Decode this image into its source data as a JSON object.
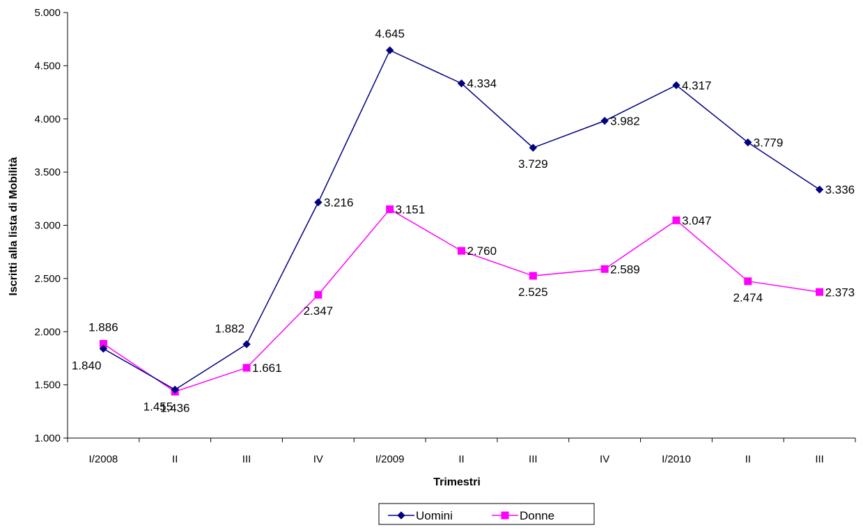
{
  "chart_data": {
    "type": "line",
    "xlabel": "Trimestri",
    "ylabel": "Iscritti alla lista di Mobilità",
    "ylim": [
      1000,
      5000
    ],
    "ytick_step": 500,
    "ytick_labels": [
      "1.000",
      "1.500",
      "2.000",
      "2.500",
      "3.000",
      "3.500",
      "4.000",
      "4.500",
      "5.000"
    ],
    "categories": [
      "I/2008",
      "II",
      "III",
      "IV",
      "I/2009",
      "II",
      "III",
      "IV",
      "I/2010",
      "II",
      "III"
    ],
    "grid": false,
    "legend_position": "bottom",
    "series": [
      {
        "name": "Uomini",
        "color": "#000080",
        "marker": "diamond",
        "values": [
          1840,
          1455,
          1882,
          3216,
          4645,
          4334,
          3729,
          3982,
          4317,
          3779,
          3336
        ],
        "labels": [
          "1.840",
          "1.455",
          "1.882",
          "3.216",
          "4.645",
          "4.334",
          "3.729",
          "3.982",
          "4.317",
          "3.779",
          "3.336"
        ]
      },
      {
        "name": "Donne",
        "color": "#FF00FF",
        "marker": "square",
        "values": [
          1886,
          1436,
          1661,
          2347,
          3151,
          2760,
          2525,
          2589,
          3047,
          2474,
          2373
        ],
        "labels": [
          "1.886",
          "1.436",
          "1.661",
          "2.347",
          "3.151",
          "2.760",
          "2.525",
          "2.589",
          "3.047",
          "2.474",
          "2.373"
        ]
      }
    ]
  }
}
